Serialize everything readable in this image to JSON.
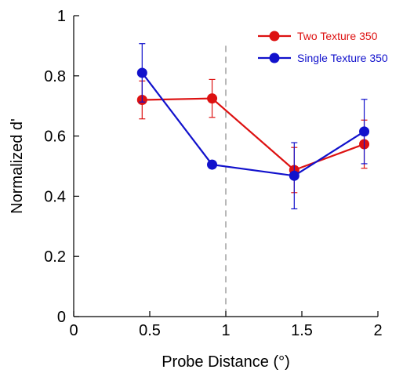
{
  "chart_data": {
    "type": "line",
    "xlabel": "Probe Distance (°)",
    "ylabel": "Normalized d'",
    "xlim": [
      0,
      2
    ],
    "ylim": [
      0,
      1
    ],
    "xticks": [
      0,
      0.5,
      1,
      1.5,
      2
    ],
    "xtick_labels": [
      "0",
      "0.5",
      "1",
      "1.5",
      "2"
    ],
    "yticks": [
      0,
      0.2,
      0.4,
      0.6,
      0.8,
      1
    ],
    "ytick_labels": [
      "0",
      "0.2",
      "0.4",
      "0.6",
      "0.8",
      "1"
    ],
    "grid": false,
    "legend_position": "top-right",
    "reference_line": {
      "x": 1,
      "style": "dashed",
      "color": "#888888"
    },
    "series": [
      {
        "name": "Two Texture 350",
        "color": "#dd1111",
        "x": [
          0.45,
          0.91,
          1.45,
          1.91
        ],
        "y": [
          0.72,
          0.725,
          0.487,
          0.573
        ],
        "error": [
          0.063,
          0.063,
          0.075,
          0.08
        ]
      },
      {
        "name": "Single Texture 350",
        "color": "#1111cc",
        "x": [
          0.45,
          0.91,
          1.45,
          1.91
        ],
        "y": [
          0.81,
          0.505,
          0.468,
          0.615
        ],
        "error": [
          0.097,
          0.012,
          0.11,
          0.107
        ]
      }
    ]
  }
}
